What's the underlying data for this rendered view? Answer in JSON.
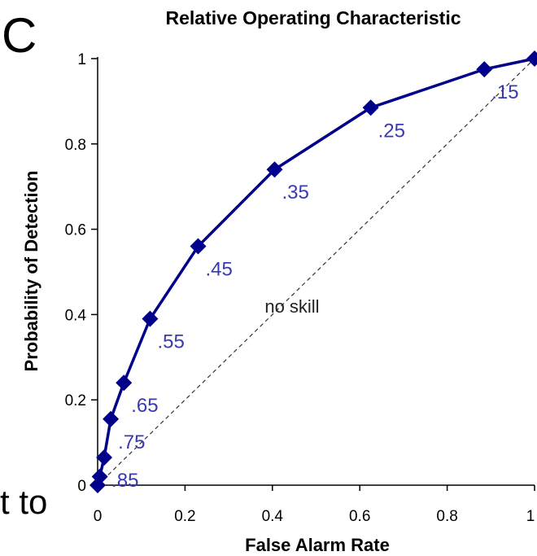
{
  "panel_letter": "C",
  "cut_text": "t to",
  "colors": {
    "curve": "#00008B",
    "point_labels": "#3A3AB0",
    "diagonal": "#333333",
    "axis": "#000000"
  },
  "chart_data": {
    "type": "line",
    "title": "Relative Operating Characteristic",
    "xlabel": "False Alarm Rate",
    "ylabel": "Probability of Detection",
    "xlim": [
      0,
      1
    ],
    "ylim": [
      0,
      1
    ],
    "x_ticks": [
      "0",
      "0.2",
      "0.4",
      "0.6",
      "0.8",
      "1"
    ],
    "y_ticks": [
      "0",
      "0.2",
      "0.4",
      "0.6",
      "0.8",
      "1"
    ],
    "grid": false,
    "legend": "none",
    "series": [
      {
        "x": [
          0.0,
          0.005,
          0.015,
          0.03,
          0.06,
          0.12,
          0.23,
          0.405,
          0.625,
          0.885,
          1.0
        ],
        "y": [
          0.0,
          0.02,
          0.065,
          0.155,
          0.24,
          0.39,
          0.56,
          0.74,
          0.885,
          0.975,
          1.0
        ],
        "point_labels": [
          "",
          "",
          ".85",
          ".75",
          ".65",
          ".55",
          ".45",
          ".35",
          ".25",
          ".15",
          ""
        ]
      }
    ],
    "reference_line": {
      "x": [
        0,
        1
      ],
      "y": [
        0,
        1
      ],
      "label": "no skill",
      "label_at": [
        0.445,
        0.405
      ]
    }
  }
}
